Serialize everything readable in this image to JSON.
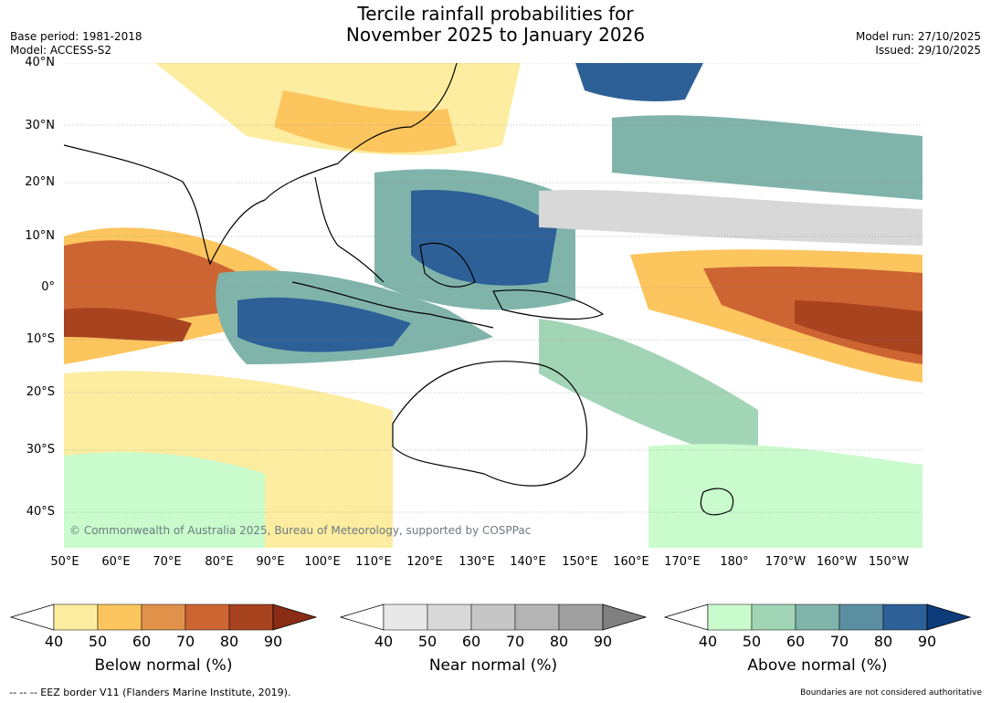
{
  "title_line1": "Tercile rainfall probabilities for",
  "title_line2": "November 2025 to January 2026",
  "base_period": "Base period: 1981-2018",
  "model": "Model: ACCESS-S2",
  "model_run": "Model run: 27/10/2025",
  "issued": "Issued: 29/10/2025",
  "copyright": "© Commonwealth of Australia 2025, Bureau of Meteorology, supported by COSPPac",
  "lat_labels": [
    "40°N",
    "30°N",
    "20°N",
    "10°N",
    "0°",
    "10°S",
    "20°S",
    "30°S",
    "40°S"
  ],
  "lon_labels": [
    "50°E",
    "60°E",
    "70°E",
    "80°E",
    "90°E",
    "100°E",
    "110°E",
    "120°E",
    "130°E",
    "140°E",
    "150°E",
    "160°E",
    "170°E",
    "180°",
    "170°W",
    "160°W",
    "150°W"
  ],
  "colorbars": [
    {
      "label": "Below normal (%)",
      "ticks": [
        "40",
        "50",
        "60",
        "70",
        "80",
        "90"
      ],
      "colors": [
        "#fdeda0",
        "#fcc55e",
        "#e0914a",
        "#cd6533",
        "#a8431f",
        "#8b2d16"
      ]
    },
    {
      "label": "Near normal (%)",
      "ticks": [
        "40",
        "50",
        "60",
        "70",
        "80",
        "90"
      ],
      "colors": [
        "#e8e8e8",
        "#d8d8d8",
        "#c6c6c6",
        "#b4b4b4",
        "#a0a0a0",
        "#808080"
      ]
    },
    {
      "label": "Above normal (%)",
      "ticks": [
        "40",
        "50",
        "60",
        "70",
        "80",
        "90"
      ],
      "colors": [
        "#c9fbcc",
        "#a2d4b6",
        "#80b4ab",
        "#5a8ea0",
        "#2d6096",
        "#0e3c7a"
      ]
    }
  ],
  "footer_left": "--  --  -- EEZ border V11 (Flanders Marine Institute, 2019).",
  "footer_right": "Boundaries are not considered authoritative"
}
